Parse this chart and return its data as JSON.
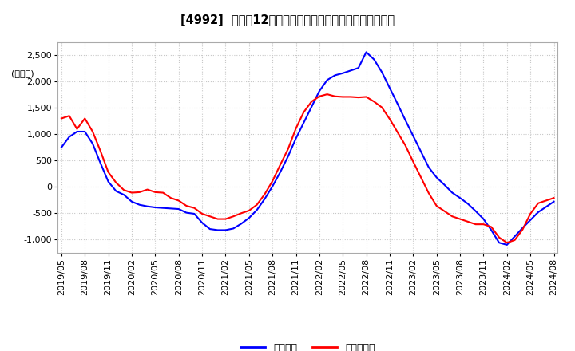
{
  "title": "[4992]  利益だ12か月移動合計の対前年同期増減額の推移",
  "ylabel": "(百万円)",
  "ylim": [
    -1250,
    2750
  ],
  "yticks": [
    -1000,
    -500,
    0,
    500,
    1000,
    1500,
    2000,
    2500
  ],
  "legend_labels": [
    "経常利益",
    "当期純利益"
  ],
  "line_colors": [
    "#0000ff",
    "#ff0000"
  ],
  "background_color": "#ffffff",
  "grid_color": "#c8c8c8",
  "keiri": [
    750,
    950,
    1050,
    1050,
    820,
    450,
    100,
    -80,
    -150,
    -280,
    -340,
    -370,
    -390,
    -400,
    -410,
    -420,
    -490,
    -510,
    -680,
    -800,
    -820,
    -820,
    -790,
    -700,
    -590,
    -440,
    -230,
    10,
    280,
    580,
    920,
    1220,
    1520,
    1820,
    2030,
    2120,
    2160,
    2210,
    2260,
    2560,
    2420,
    2180,
    1880,
    1580,
    1270,
    970,
    670,
    370,
    180,
    40,
    -110,
    -210,
    -320,
    -460,
    -610,
    -820,
    -1060,
    -1100,
    -940,
    -780,
    -630,
    -480,
    -380,
    -280
  ],
  "touiki": [
    1300,
    1350,
    1100,
    1300,
    1050,
    680,
    280,
    80,
    -60,
    -110,
    -100,
    -50,
    -100,
    -110,
    -210,
    -260,
    -360,
    -400,
    -510,
    -560,
    -610,
    -610,
    -560,
    -500,
    -450,
    -340,
    -140,
    110,
    420,
    720,
    1110,
    1420,
    1620,
    1720,
    1760,
    1720,
    1710,
    1710,
    1700,
    1710,
    1620,
    1510,
    1290,
    1040,
    790,
    480,
    180,
    -120,
    -360,
    -460,
    -560,
    -610,
    -660,
    -710,
    -710,
    -760,
    -960,
    -1060,
    -1010,
    -810,
    -510,
    -310,
    -260,
    -210
  ],
  "xtick_positions": [
    0,
    3,
    6,
    9,
    12,
    15,
    18,
    21,
    24,
    27,
    30,
    33,
    36,
    39,
    42,
    45,
    48,
    51,
    54,
    57,
    60,
    63
  ],
  "xtick_labels": [
    "2019/05",
    "2019/08",
    "2019/11",
    "2020/02",
    "2020/05",
    "2020/08",
    "2020/11",
    "2021/02",
    "2021/05",
    "2021/08",
    "2021/11",
    "2022/02",
    "2022/05",
    "2022/08",
    "2022/11",
    "2023/02",
    "2023/05",
    "2023/08",
    "2023/11",
    "2024/02",
    "2024/05",
    "2024/08"
  ]
}
